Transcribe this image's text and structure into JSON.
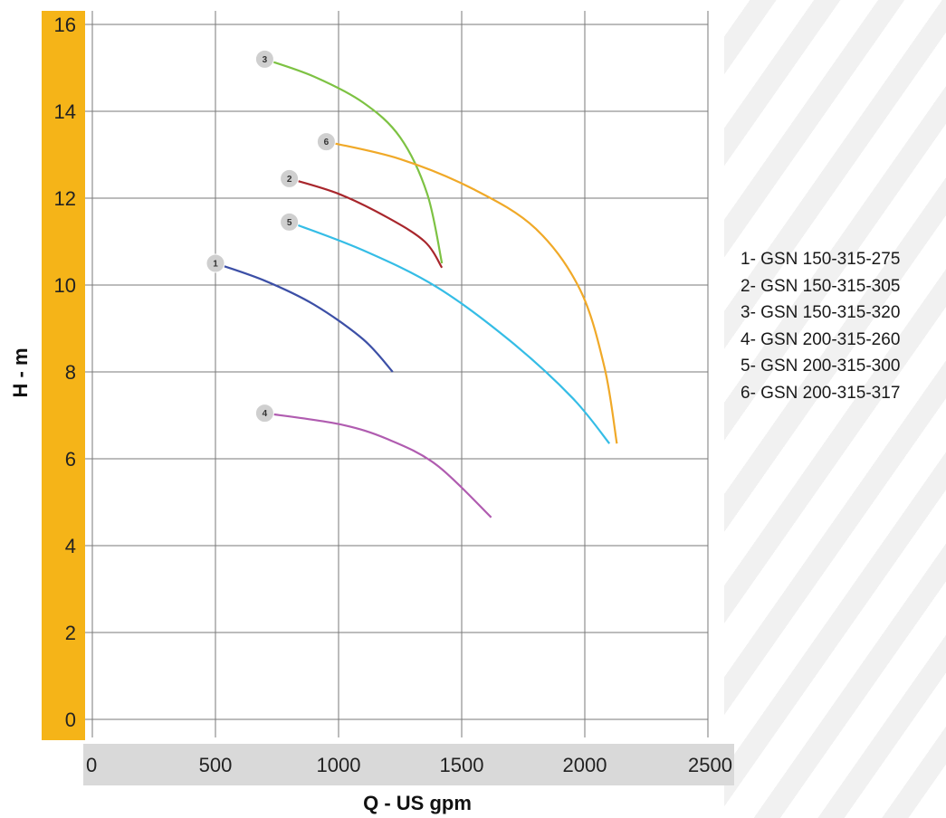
{
  "chart_data": {
    "type": "line",
    "xlabel": "Q - US gpm",
    "ylabel": "H - m",
    "xlim": [
      0,
      2500
    ],
    "ylim": [
      0,
      16
    ],
    "xticks": [
      "0",
      "500",
      "1000",
      "1500",
      "2000",
      "2500"
    ],
    "yticks": [
      "0",
      "2",
      "4",
      "6",
      "8",
      "10",
      "12",
      "14",
      "16"
    ],
    "grid": true,
    "legend_placement": "right",
    "axis_colors": {
      "y_band": "#f5b418",
      "x_band": "#d9d9d9"
    },
    "series": [
      {
        "name": "1- GSN 150-315-275",
        "marker": "1",
        "color": "#3c4fa6",
        "points": [
          [
            500,
            10.5
          ],
          [
            700,
            10.1
          ],
          [
            900,
            9.55
          ],
          [
            1100,
            8.75
          ],
          [
            1220,
            8.0
          ]
        ]
      },
      {
        "name": "2- GSN 150-315-305",
        "marker": "2",
        "color": "#a8262c",
        "points": [
          [
            800,
            12.45
          ],
          [
            1000,
            12.1
          ],
          [
            1200,
            11.55
          ],
          [
            1350,
            11.0
          ],
          [
            1420,
            10.4
          ]
        ]
      },
      {
        "name": "3- GSN 150-315-320",
        "marker": "3",
        "color": "#7dc243",
        "points": [
          [
            700,
            15.2
          ],
          [
            900,
            14.8
          ],
          [
            1100,
            14.2
          ],
          [
            1250,
            13.4
          ],
          [
            1360,
            12.1
          ],
          [
            1420,
            10.5
          ]
        ]
      },
      {
        "name": "4- GSN 200-315-260",
        "marker": "4",
        "color": "#b05cb0",
        "points": [
          [
            700,
            7.05
          ],
          [
            1000,
            6.8
          ],
          [
            1200,
            6.45
          ],
          [
            1400,
            5.85
          ],
          [
            1620,
            4.65
          ]
        ]
      },
      {
        "name": "5- GSN 200-315-300",
        "marker": "5",
        "color": "#35bde6",
        "points": [
          [
            800,
            11.45
          ],
          [
            1100,
            10.8
          ],
          [
            1400,
            9.95
          ],
          [
            1700,
            8.7
          ],
          [
            1950,
            7.4
          ],
          [
            2100,
            6.35
          ]
        ]
      },
      {
        "name": "6- GSN 200-315-317",
        "marker": "6",
        "color": "#f0a928",
        "points": [
          [
            950,
            13.3
          ],
          [
            1250,
            12.9
          ],
          [
            1550,
            12.2
          ],
          [
            1800,
            11.3
          ],
          [
            1980,
            9.9
          ],
          [
            2080,
            8.1
          ],
          [
            2130,
            6.35
          ]
        ]
      }
    ]
  }
}
